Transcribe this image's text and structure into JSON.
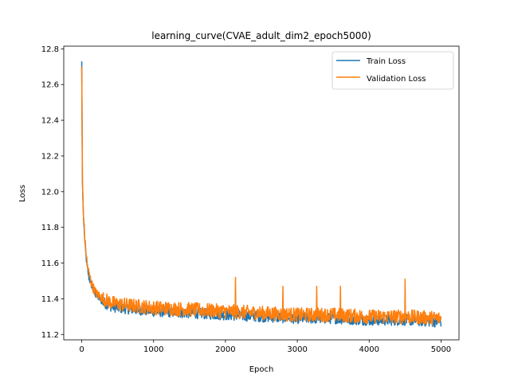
{
  "chart_data": {
    "type": "line",
    "title": "learning_curve(CVAE_adult_dim2_epoch5000)",
    "xlabel": "Epoch",
    "ylabel": "Loss",
    "xlim": [
      -250,
      5250
    ],
    "ylim": [
      11.17,
      12.815
    ],
    "x_ticks": [
      0,
      1000,
      2000,
      3000,
      4000,
      5000
    ],
    "x_tick_labels": [
      "0",
      "1000",
      "2000",
      "3000",
      "4000",
      "5000"
    ],
    "y_ticks": [
      11.2,
      11.4,
      11.6,
      11.8,
      12.0,
      12.2,
      12.4,
      12.6,
      12.8
    ],
    "y_tick_labels": [
      "11.2",
      "11.4",
      "11.6",
      "11.8",
      "12.0",
      "12.2",
      "12.4",
      "12.6",
      "12.8"
    ],
    "grid": false,
    "legend_position": "top-right",
    "series": [
      {
        "name": "Train Loss",
        "color": "#1f77b4",
        "x": [
          0,
          10,
          25,
          50,
          75,
          100,
          150,
          200,
          300,
          400,
          500,
          750,
          1000,
          1500,
          2000,
          2500,
          3000,
          3500,
          4000,
          4500,
          5000
        ],
        "y": [
          12.73,
          12.05,
          11.85,
          11.68,
          11.58,
          11.52,
          11.46,
          11.42,
          11.38,
          11.36,
          11.35,
          11.34,
          11.33,
          11.32,
          11.31,
          11.3,
          11.29,
          11.29,
          11.28,
          11.28,
          11.27
        ]
      },
      {
        "name": "Validation Loss",
        "color": "#ff7f0e",
        "x": [
          0,
          10,
          25,
          50,
          75,
          100,
          150,
          200,
          300,
          400,
          500,
          750,
          1000,
          1500,
          2000,
          2500,
          3000,
          3500,
          4000,
          4500,
          5000
        ],
        "y": [
          12.7,
          12.06,
          11.86,
          11.7,
          11.6,
          11.54,
          11.47,
          11.43,
          11.4,
          11.38,
          11.37,
          11.36,
          11.35,
          11.34,
          11.33,
          11.32,
          11.31,
          11.31,
          11.3,
          11.3,
          11.29
        ],
        "spikes": [
          {
            "x": 2140,
            "y": 11.52
          },
          {
            "x": 2800,
            "y": 11.47
          },
          {
            "x": 3270,
            "y": 11.47
          },
          {
            "x": 3600,
            "y": 11.47
          },
          {
            "x": 4500,
            "y": 11.51
          }
        ],
        "noise_amplitude": 0.04
      }
    ]
  }
}
